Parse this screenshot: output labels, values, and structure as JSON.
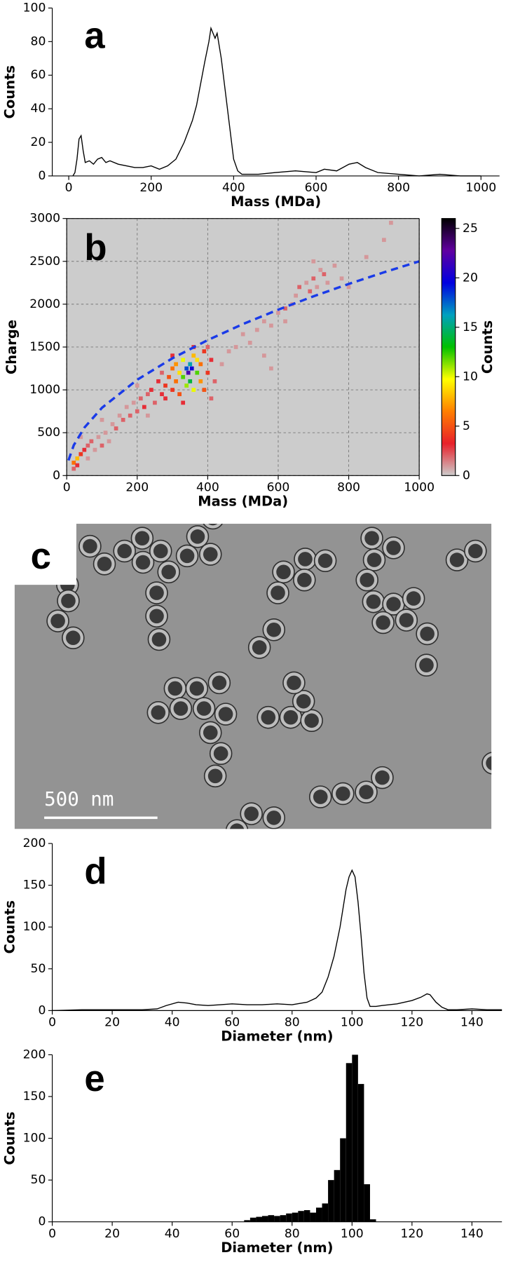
{
  "chart_data": [
    {
      "type": "line",
      "label": "a",
      "xlabel": "Mass (MDa)",
      "ylabel": "Counts",
      "color": "#000000",
      "x": [
        10,
        15,
        20,
        25,
        30,
        35,
        40,
        50,
        60,
        70,
        80,
        90,
        100,
        120,
        140,
        160,
        180,
        200,
        220,
        240,
        260,
        280,
        300,
        310,
        320,
        330,
        340,
        345,
        350,
        355,
        360,
        370,
        380,
        390,
        400,
        410,
        420,
        440,
        460,
        500,
        550,
        600,
        620,
        650,
        680,
        700,
        720,
        750,
        800,
        850,
        900,
        950,
        1000
      ],
      "values": [
        0,
        2,
        10,
        22,
        24,
        15,
        8,
        9,
        7,
        10,
        11,
        8,
        9,
        7,
        6,
        5,
        5,
        6,
        4,
        6,
        10,
        20,
        33,
        42,
        55,
        68,
        80,
        88,
        85,
        82,
        85,
        70,
        50,
        30,
        10,
        3,
        1,
        1,
        1,
        2,
        3,
        2,
        4,
        3,
        7,
        8,
        5,
        2,
        1,
        0,
        1,
        0,
        0
      ],
      "xlim": [
        -40,
        1045
      ],
      "ylim": [
        0,
        100
      ],
      "xticks": [
        0,
        200,
        400,
        600,
        800,
        1000
      ],
      "yticks": [
        0,
        20,
        40,
        60,
        80,
        100
      ]
    },
    {
      "type": "heatmap",
      "label": "b",
      "xlabel": "Mass (MDa)",
      "ylabel": "Charge",
      "background": "#cccccc",
      "grid": true,
      "xlim": [
        0,
        1000
      ],
      "ylim": [
        0,
        3000
      ],
      "xticks": [
        0,
        200,
        400,
        600,
        800,
        1000
      ],
      "yticks": [
        0,
        500,
        1000,
        1500,
        2000,
        2500,
        3000
      ],
      "points": [
        {
          "x": 20,
          "y": 150,
          "value": 6
        },
        {
          "x": 30,
          "y": 200,
          "value": 8
        },
        {
          "x": 30,
          "y": 120,
          "value": 3
        },
        {
          "x": 40,
          "y": 250,
          "value": 4
        },
        {
          "x": 20,
          "y": 80,
          "value": 2
        },
        {
          "x": 50,
          "y": 300,
          "value": 3
        },
        {
          "x": 60,
          "y": 350,
          "value": 2
        },
        {
          "x": 70,
          "y": 400,
          "value": 2
        },
        {
          "x": 80,
          "y": 300,
          "value": 1
        },
        {
          "x": 90,
          "y": 450,
          "value": 1
        },
        {
          "x": 100,
          "y": 350,
          "value": 2
        },
        {
          "x": 110,
          "y": 500,
          "value": 1
        },
        {
          "x": 120,
          "y": 400,
          "value": 1
        },
        {
          "x": 130,
          "y": 600,
          "value": 1
        },
        {
          "x": 140,
          "y": 550,
          "value": 2
        },
        {
          "x": 60,
          "y": 200,
          "value": 1
        },
        {
          "x": 100,
          "y": 650,
          "value": 1
        },
        {
          "x": 150,
          "y": 700,
          "value": 1
        },
        {
          "x": 40,
          "y": 450,
          "value": 1
        },
        {
          "x": 160,
          "y": 650,
          "value": 2
        },
        {
          "x": 170,
          "y": 800,
          "value": 1
        },
        {
          "x": 180,
          "y": 700,
          "value": 2
        },
        {
          "x": 190,
          "y": 850,
          "value": 1
        },
        {
          "x": 200,
          "y": 750,
          "value": 2
        },
        {
          "x": 210,
          "y": 900,
          "value": 2
        },
        {
          "x": 220,
          "y": 800,
          "value": 3
        },
        {
          "x": 230,
          "y": 950,
          "value": 2
        },
        {
          "x": 240,
          "y": 1000,
          "value": 3
        },
        {
          "x": 250,
          "y": 850,
          "value": 2
        },
        {
          "x": 260,
          "y": 1100,
          "value": 3
        },
        {
          "x": 270,
          "y": 950,
          "value": 3
        },
        {
          "x": 280,
          "y": 1050,
          "value": 4
        },
        {
          "x": 200,
          "y": 1050,
          "value": 1
        },
        {
          "x": 230,
          "y": 700,
          "value": 1
        },
        {
          "x": 270,
          "y": 1200,
          "value": 2
        },
        {
          "x": 290,
          "y": 1150,
          "value": 5
        },
        {
          "x": 300,
          "y": 1250,
          "value": 6
        },
        {
          "x": 300,
          "y": 1000,
          "value": 4
        },
        {
          "x": 310,
          "y": 1300,
          "value": 7
        },
        {
          "x": 310,
          "y": 1100,
          "value": 6
        },
        {
          "x": 320,
          "y": 1200,
          "value": 9
        },
        {
          "x": 320,
          "y": 950,
          "value": 5
        },
        {
          "x": 330,
          "y": 1350,
          "value": 10
        },
        {
          "x": 330,
          "y": 1150,
          "value": 12
        },
        {
          "x": 340,
          "y": 1250,
          "value": 18
        },
        {
          "x": 340,
          "y": 1050,
          "value": 11
        },
        {
          "x": 345,
          "y": 1200,
          "value": 22
        },
        {
          "x": 350,
          "y": 1300,
          "value": 16
        },
        {
          "x": 350,
          "y": 1100,
          "value": 14
        },
        {
          "x": 355,
          "y": 1250,
          "value": 20
        },
        {
          "x": 360,
          "y": 1000,
          "value": 10
        },
        {
          "x": 360,
          "y": 1400,
          "value": 8
        },
        {
          "x": 370,
          "y": 1200,
          "value": 12
        },
        {
          "x": 370,
          "y": 1350,
          "value": 9
        },
        {
          "x": 380,
          "y": 1100,
          "value": 7
        },
        {
          "x": 380,
          "y": 1300,
          "value": 6
        },
        {
          "x": 390,
          "y": 1450,
          "value": 4
        },
        {
          "x": 390,
          "y": 1000,
          "value": 5
        },
        {
          "x": 400,
          "y": 1200,
          "value": 4
        },
        {
          "x": 410,
          "y": 1350,
          "value": 3
        },
        {
          "x": 410,
          "y": 900,
          "value": 2
        },
        {
          "x": 420,
          "y": 1100,
          "value": 2
        },
        {
          "x": 330,
          "y": 850,
          "value": 3
        },
        {
          "x": 300,
          "y": 1400,
          "value": 3
        },
        {
          "x": 280,
          "y": 900,
          "value": 3
        },
        {
          "x": 360,
          "y": 1500,
          "value": 3
        },
        {
          "x": 400,
          "y": 1500,
          "value": 2
        },
        {
          "x": 440,
          "y": 1300,
          "value": 1
        },
        {
          "x": 460,
          "y": 1450,
          "value": 1
        },
        {
          "x": 480,
          "y": 1500,
          "value": 1
        },
        {
          "x": 500,
          "y": 1650,
          "value": 1
        },
        {
          "x": 520,
          "y": 1550,
          "value": 1
        },
        {
          "x": 540,
          "y": 1700,
          "value": 1
        },
        {
          "x": 560,
          "y": 1800,
          "value": 1
        },
        {
          "x": 580,
          "y": 1750,
          "value": 1
        },
        {
          "x": 600,
          "y": 1900,
          "value": 1
        },
        {
          "x": 620,
          "y": 1950,
          "value": 2
        },
        {
          "x": 640,
          "y": 2000,
          "value": 1
        },
        {
          "x": 650,
          "y": 2100,
          "value": 1
        },
        {
          "x": 660,
          "y": 2200,
          "value": 2
        },
        {
          "x": 680,
          "y": 2250,
          "value": 1
        },
        {
          "x": 690,
          "y": 2150,
          "value": 2
        },
        {
          "x": 700,
          "y": 2300,
          "value": 2
        },
        {
          "x": 710,
          "y": 2200,
          "value": 1
        },
        {
          "x": 720,
          "y": 2400,
          "value": 1
        },
        {
          "x": 730,
          "y": 2350,
          "value": 2
        },
        {
          "x": 740,
          "y": 2250,
          "value": 1
        },
        {
          "x": 760,
          "y": 2450,
          "value": 1
        },
        {
          "x": 780,
          "y": 2300,
          "value": 1
        },
        {
          "x": 800,
          "y": 2200,
          "value": 1
        },
        {
          "x": 620,
          "y": 1800,
          "value": 1
        },
        {
          "x": 580,
          "y": 1250,
          "value": 1
        },
        {
          "x": 560,
          "y": 1400,
          "value": 1
        },
        {
          "x": 700,
          "y": 2500,
          "value": 1
        },
        {
          "x": 850,
          "y": 2550,
          "value": 1
        },
        {
          "x": 900,
          "y": 2750,
          "value": 1
        },
        {
          "x": 920,
          "y": 2950,
          "value": 1
        }
      ],
      "fit": {
        "color": "#1a3be8",
        "x": [
          5,
          20,
          50,
          100,
          200,
          300,
          400,
          500,
          600,
          700,
          800,
          900,
          1000
        ],
        "y": [
          177,
          354,
          559,
          791,
          1118,
          1369,
          1581,
          1768,
          1936,
          2092,
          2236,
          2372,
          2500
        ]
      },
      "colorbar": {
        "label": "Counts",
        "lim": [
          0,
          26
        ],
        "ticks": [
          0,
          5,
          10,
          15,
          20,
          25
        ],
        "colormap": [
          "#cccccc",
          "#e8202a",
          "#ff7f00",
          "#ffff00",
          "#00c000",
          "#00a0c0",
          "#0000e0",
          "#6000a0",
          "#000000"
        ]
      }
    },
    {
      "type": "line",
      "label": "d",
      "xlabel": "Diameter (nm)",
      "ylabel": "Counts",
      "color": "#000000",
      "x": [
        0,
        10,
        20,
        30,
        35,
        38,
        42,
        45,
        48,
        52,
        56,
        60,
        65,
        70,
        75,
        80,
        85,
        88,
        90,
        92,
        94,
        96,
        98,
        99,
        100,
        101,
        102,
        103,
        104,
        105,
        106,
        108,
        110,
        115,
        120,
        123,
        125,
        126,
        128,
        130,
        132,
        135,
        140,
        145,
        150
      ],
      "values": [
        0,
        1,
        1,
        1,
        2,
        6,
        10,
        9,
        7,
        6,
        7,
        8,
        7,
        7,
        8,
        7,
        10,
        15,
        22,
        40,
        65,
        100,
        145,
        160,
        168,
        160,
        130,
        90,
        45,
        15,
        5,
        5,
        6,
        8,
        12,
        16,
        20,
        19,
        10,
        4,
        1,
        1,
        2,
        1,
        1
      ],
      "xlim": [
        0,
        150
      ],
      "ylim": [
        0,
        200
      ],
      "xticks": [
        0,
        20,
        40,
        60,
        80,
        100,
        120,
        140
      ],
      "yticks": [
        0,
        50,
        100,
        150,
        200
      ]
    },
    {
      "type": "histogram",
      "label": "e",
      "xlabel": "Diameter (nm)",
      "ylabel": "Counts",
      "color": "#000000",
      "bins": [
        64,
        66,
        68,
        70,
        72,
        74,
        76,
        78,
        80,
        82,
        84,
        86,
        88,
        90,
        92,
        94,
        96,
        98,
        100,
        102,
        104,
        106,
        108
      ],
      "values": [
        2,
        5,
        6,
        7,
        8,
        7,
        8,
        10,
        11,
        13,
        14,
        11,
        17,
        22,
        50,
        62,
        100,
        190,
        200,
        165,
        45,
        3
      ],
      "xlim": [
        0,
        150
      ],
      "ylim": [
        0,
        200
      ],
      "xticks": [
        0,
        20,
        40,
        60,
        80,
        100,
        120,
        140
      ],
      "yticks": [
        0,
        50,
        100,
        150,
        200
      ]
    }
  ],
  "image": {
    "label": "c",
    "scale_bar": "500 nm"
  }
}
